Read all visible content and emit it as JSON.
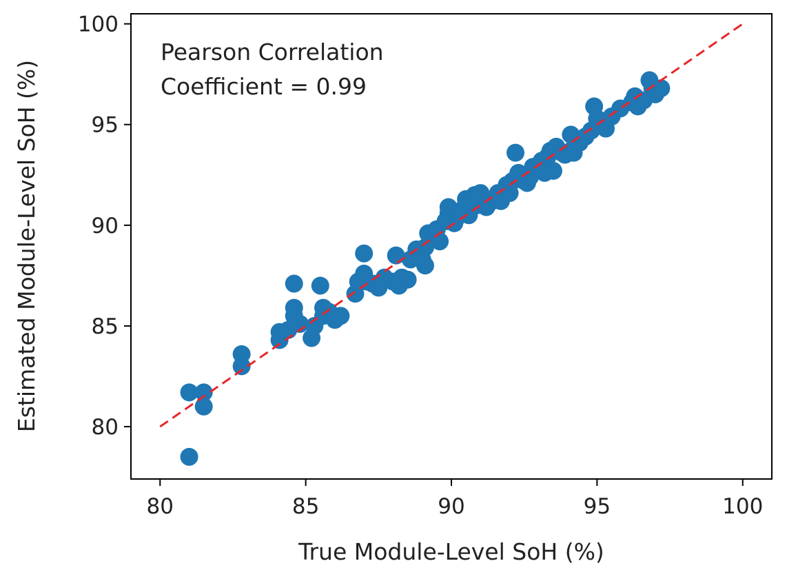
{
  "chart_data": {
    "type": "scatter",
    "title": "",
    "xlabel": "True Module-Level SoH (%)",
    "ylabel": "Estimated Module-Level SoH (%)",
    "xlim": [
      79,
      101
    ],
    "ylim": [
      77.4,
      100.5
    ],
    "xticks": [
      80,
      85,
      90,
      95,
      100
    ],
    "yticks": [
      80,
      85,
      90,
      95,
      100
    ],
    "grid": false,
    "annotation": [
      "Pearson Correlation",
      "Coefficient = 0.99"
    ],
    "reference_line": {
      "name": "y = x",
      "style": "dashed",
      "color": "#e8262a",
      "x": [
        80,
        100
      ],
      "y": [
        80,
        100
      ]
    },
    "colors": {
      "points": "#1f77b4",
      "axes": "#000000",
      "text": "#222222"
    },
    "series": [
      {
        "name": "Modules",
        "points": [
          [
            81.0,
            81.7
          ],
          [
            81.5,
            81.7
          ],
          [
            81.5,
            81.0
          ],
          [
            81.0,
            78.5
          ],
          [
            82.8,
            83.6
          ],
          [
            82.8,
            83.0
          ],
          [
            84.1,
            84.7
          ],
          [
            84.1,
            84.3
          ],
          [
            84.4,
            84.8
          ],
          [
            84.6,
            87.1
          ],
          [
            84.6,
            85.9
          ],
          [
            84.6,
            85.5
          ],
          [
            84.8,
            85.1
          ],
          [
            85.2,
            84.4
          ],
          [
            85.3,
            85.0
          ],
          [
            85.5,
            87.0
          ],
          [
            85.6,
            85.9
          ],
          [
            85.6,
            85.5
          ],
          [
            85.8,
            85.7
          ],
          [
            86.0,
            85.3
          ],
          [
            86.2,
            85.5
          ],
          [
            86.7,
            86.6
          ],
          [
            86.8,
            87.2
          ],
          [
            87.0,
            87.6
          ],
          [
            87.0,
            88.6
          ],
          [
            87.1,
            87.2
          ],
          [
            87.3,
            87.1
          ],
          [
            87.5,
            86.9
          ],
          [
            87.7,
            87.4
          ],
          [
            88.0,
            87.2
          ],
          [
            88.1,
            88.5
          ],
          [
            88.2,
            87.0
          ],
          [
            88.3,
            87.4
          ],
          [
            88.5,
            87.3
          ],
          [
            88.6,
            88.3
          ],
          [
            88.8,
            88.8
          ],
          [
            89.0,
            88.3
          ],
          [
            89.1,
            88.0
          ],
          [
            89.1,
            88.9
          ],
          [
            89.2,
            89.6
          ],
          [
            89.4,
            89.3
          ],
          [
            89.5,
            89.8
          ],
          [
            89.6,
            89.2
          ],
          [
            89.8,
            90.2
          ],
          [
            89.9,
            90.6
          ],
          [
            89.9,
            90.9
          ],
          [
            90.1,
            90.1
          ],
          [
            90.2,
            90.4
          ],
          [
            90.4,
            90.8
          ],
          [
            90.5,
            91.3
          ],
          [
            90.6,
            90.5
          ],
          [
            90.8,
            91.5
          ],
          [
            90.9,
            91.0
          ],
          [
            91.0,
            91.6
          ],
          [
            91.2,
            90.9
          ],
          [
            91.4,
            91.2
          ],
          [
            91.6,
            91.6
          ],
          [
            91.7,
            91.2
          ],
          [
            91.9,
            92.0
          ],
          [
            92.0,
            91.6
          ],
          [
            92.1,
            92.2
          ],
          [
            92.2,
            93.6
          ],
          [
            92.3,
            92.6
          ],
          [
            92.5,
            92.2
          ],
          [
            92.6,
            92.1
          ],
          [
            92.7,
            92.4
          ],
          [
            92.8,
            92.9
          ],
          [
            93.0,
            92.8
          ],
          [
            93.1,
            93.2
          ],
          [
            93.2,
            92.6
          ],
          [
            93.3,
            93.4
          ],
          [
            93.4,
            93.7
          ],
          [
            93.5,
            92.7
          ],
          [
            93.6,
            93.9
          ],
          [
            93.8,
            93.6
          ],
          [
            93.9,
            93.5
          ],
          [
            94.1,
            94.5
          ],
          [
            94.1,
            93.7
          ],
          [
            94.2,
            93.6
          ],
          [
            94.4,
            94.1
          ],
          [
            94.6,
            94.4
          ],
          [
            94.8,
            94.7
          ],
          [
            94.9,
            95.9
          ],
          [
            95.0,
            95.3
          ],
          [
            95.1,
            95.0
          ],
          [
            95.3,
            94.8
          ],
          [
            95.5,
            95.4
          ],
          [
            95.8,
            95.8
          ],
          [
            96.2,
            96.1
          ],
          [
            96.3,
            96.4
          ],
          [
            96.4,
            95.9
          ],
          [
            96.6,
            96.2
          ],
          [
            96.8,
            97.2
          ],
          [
            96.9,
            96.8
          ],
          [
            97.0,
            96.5
          ],
          [
            97.2,
            96.8
          ]
        ]
      }
    ]
  }
}
